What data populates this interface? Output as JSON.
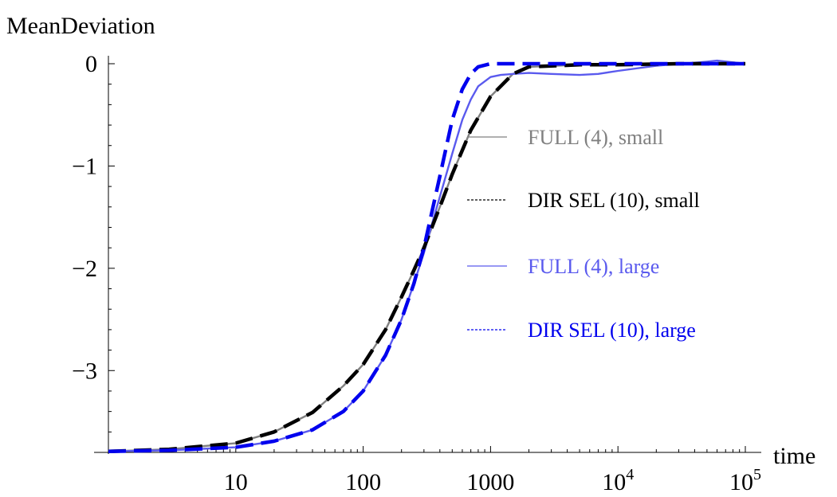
{
  "chart_data": {
    "type": "line",
    "ylabel": "MeanDeviation",
    "xlabel": "time",
    "x_scale": "log",
    "xlim": [
      1,
      100000
    ],
    "ylim": [
      -3.8,
      0.05
    ],
    "x_ticks": [
      {
        "value": 10,
        "label": "10"
      },
      {
        "value": 100,
        "label": "100"
      },
      {
        "value": 1000,
        "label": "1000"
      },
      {
        "value": 10000,
        "base": "10",
        "exp": "4"
      },
      {
        "value": 100000,
        "base": "10",
        "exp": "5"
      }
    ],
    "y_ticks": [
      {
        "value": 0,
        "label": "0"
      },
      {
        "value": -1,
        "label": "−1"
      },
      {
        "value": -2,
        "label": "−2"
      },
      {
        "value": -3,
        "label": "−3"
      }
    ],
    "legend_position": "right",
    "series": [
      {
        "name": "FULL (4), small",
        "color": "#808080",
        "style": "solid",
        "x": [
          1,
          3,
          10,
          20,
          40,
          70,
          100,
          150,
          200,
          250,
          300,
          400,
          500,
          700,
          1000,
          1500,
          2000,
          5000,
          10000,
          30000,
          100000
        ],
        "y": [
          -3.79,
          -3.77,
          -3.71,
          -3.6,
          -3.41,
          -3.15,
          -2.94,
          -2.6,
          -2.28,
          -2.02,
          -1.8,
          -1.4,
          -1.08,
          -0.65,
          -0.32,
          -0.1,
          -0.03,
          -0.01,
          -0.01,
          0.0,
          0.0
        ]
      },
      {
        "name": "DIR SEL (10), small",
        "color": "#000000",
        "style": "dashed",
        "x": [
          1,
          3,
          10,
          20,
          40,
          70,
          100,
          150,
          200,
          250,
          300,
          400,
          500,
          700,
          1000,
          1500,
          2000,
          5000,
          10000,
          30000,
          100000
        ],
        "y": [
          -3.79,
          -3.77,
          -3.71,
          -3.6,
          -3.41,
          -3.15,
          -2.94,
          -2.6,
          -2.28,
          -2.02,
          -1.8,
          -1.4,
          -1.08,
          -0.65,
          -0.32,
          -0.1,
          -0.03,
          -0.01,
          -0.01,
          0.0,
          0.0
        ]
      },
      {
        "name": "FULL (4), large",
        "color": "#5a5aee",
        "style": "solid",
        "x": [
          1,
          3,
          10,
          20,
          40,
          70,
          100,
          150,
          200,
          250,
          300,
          350,
          400,
          500,
          600,
          700,
          800,
          1000,
          1200,
          1500,
          2000,
          3000,
          5000,
          7000,
          10000,
          20000,
          50000,
          60000,
          100000
        ],
        "y": [
          -3.79,
          -3.78,
          -3.75,
          -3.69,
          -3.58,
          -3.4,
          -3.2,
          -2.85,
          -2.5,
          -2.15,
          -1.85,
          -1.55,
          -1.3,
          -0.88,
          -0.55,
          -0.35,
          -0.22,
          -0.13,
          -0.11,
          -0.1,
          -0.09,
          -0.1,
          -0.11,
          -0.1,
          -0.07,
          -0.02,
          0.02,
          0.03,
          0.0
        ]
      },
      {
        "name": "DIR SEL (10), large",
        "color": "#0000ee",
        "style": "dashed",
        "x": [
          1,
          3,
          10,
          20,
          40,
          70,
          100,
          150,
          200,
          250,
          300,
          400,
          500,
          600,
          700,
          800,
          1000,
          1500,
          2000,
          10000,
          100000
        ],
        "y": [
          -3.79,
          -3.78,
          -3.75,
          -3.69,
          -3.58,
          -3.4,
          -3.2,
          -2.85,
          -2.5,
          -2.15,
          -1.8,
          -1.1,
          -0.55,
          -0.25,
          -0.1,
          -0.03,
          0.0,
          0.0,
          0.0,
          0.0,
          0.0
        ]
      }
    ]
  }
}
